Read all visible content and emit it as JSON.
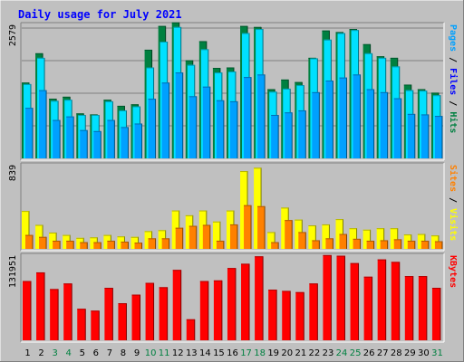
{
  "title": "Daily usage for July 2021",
  "colors": {
    "background": "#c0c0c0",
    "title": "#0000ff",
    "hits": "#008040",
    "files": "#00e0ff",
    "pages": "#00a0ff",
    "visits": "#ffff00",
    "sites": "#ff8000",
    "kbytes": "#ff0000",
    "weekend_label": "#008040",
    "weekday_label": "#000000"
  },
  "chart_data": {
    "type": "bar",
    "title": "Daily usage for July 2021",
    "categories": [
      "1",
      "2",
      "3",
      "4",
      "5",
      "6",
      "7",
      "8",
      "9",
      "10",
      "11",
      "12",
      "13",
      "14",
      "15",
      "16",
      "17",
      "18",
      "19",
      "20",
      "21",
      "22",
      "23",
      "24",
      "25",
      "26",
      "27",
      "28",
      "29",
      "30",
      "31"
    ],
    "weekend_days": [
      "3",
      "4",
      "10",
      "11",
      "17",
      "18",
      "24",
      "25",
      "31"
    ],
    "panels": [
      {
        "name": "top",
        "max_label": "2579",
        "ymax": 2579,
        "right_label_parts": [
          {
            "text": "Pages",
            "color": "#00a0ff"
          },
          {
            "text": " / ",
            "color": "#000000"
          },
          {
            "text": "Files",
            "color": "#0000ff"
          },
          {
            "text": " / ",
            "color": "#000000"
          },
          {
            "text": "Hits",
            "color": "#008040"
          }
        ],
        "series": [
          {
            "name": "Hits",
            "color": "#008040",
            "values": [
              1500,
              2080,
              1180,
              1220,
              890,
              870,
              1160,
              1040,
              1070,
              2150,
              2620,
              2690,
              1940,
              2320,
              1790,
              1800,
              2620,
              2600,
              1370,
              1560,
              1510,
              1990,
              2530,
              2500,
              2560,
              2260,
              2020,
              1990,
              1460,
              1370,
              1300
            ]
          },
          {
            "name": "Files",
            "color": "#00e0ff",
            "values": [
              1470,
              1990,
              1140,
              1160,
              860,
              860,
              1130,
              950,
              1030,
              1800,
              2310,
              2600,
              1850,
              2160,
              1700,
              1720,
              2480,
              2560,
              1320,
              1380,
              1450,
              1980,
              2350,
              2480,
              2540,
              2080,
              1990,
              1820,
              1350,
              1340,
              1250
            ]
          },
          {
            "name": "Pages",
            "color": "#00a0ff",
            "values": [
              1000,
              1350,
              760,
              830,
              560,
              540,
              760,
              620,
              690,
              1180,
              1500,
              1700,
              1230,
              1420,
              1150,
              1130,
              1610,
              1660,
              860,
              910,
              950,
              1310,
              1540,
              1600,
              1660,
              1370,
              1310,
              1190,
              880,
              870,
              840
            ]
          }
        ]
      },
      {
        "name": "middle",
        "max_label": "839",
        "ymax": 839,
        "right_label_parts": [
          {
            "text": "Sites",
            "color": "#ff8000"
          },
          {
            "text": " / ",
            "color": "#000000"
          },
          {
            "text": "Visits",
            "color": "#ffff00"
          }
        ],
        "series": [
          {
            "name": "Visits",
            "color": "#ffff00",
            "values": [
              395,
              250,
              170,
              145,
              115,
              120,
              145,
              130,
              125,
              185,
              195,
              400,
              350,
              400,
              285,
              400,
              810,
              845,
              175,
              430,
              305,
              245,
              255,
              310,
              215,
              200,
              215,
              215,
              150,
              155,
              140
            ]
          },
          {
            "name": "Sites",
            "color": "#ff8000",
            "values": [
              145,
              125,
              85,
              85,
              70,
              70,
              85,
              75,
              65,
              110,
              110,
              220,
              240,
              250,
              85,
              255,
              455,
              445,
              70,
              300,
              175,
              90,
              110,
              155,
              105,
              85,
              90,
              100,
              85,
              85,
              80
            ]
          }
        ]
      },
      {
        "name": "bottom",
        "max_label": "131951",
        "ymax": 131951,
        "right_label_parts": [
          {
            "text": "KBytes",
            "color": "#ff0000"
          }
        ],
        "series": [
          {
            "name": "KBytes",
            "color": "#ff0000",
            "values": [
              96000,
              110000,
              83000,
              92000,
              51000,
              48000,
              85000,
              60000,
              74000,
              93000,
              86000,
              114000,
              34000,
              96000,
              97000,
              117000,
              124000,
              136000,
              82000,
              80000,
              78000,
              92000,
              138000,
              137000,
              125000,
              103000,
              131000,
              127000,
              104000,
              104000,
              85000
            ]
          }
        ]
      }
    ]
  }
}
